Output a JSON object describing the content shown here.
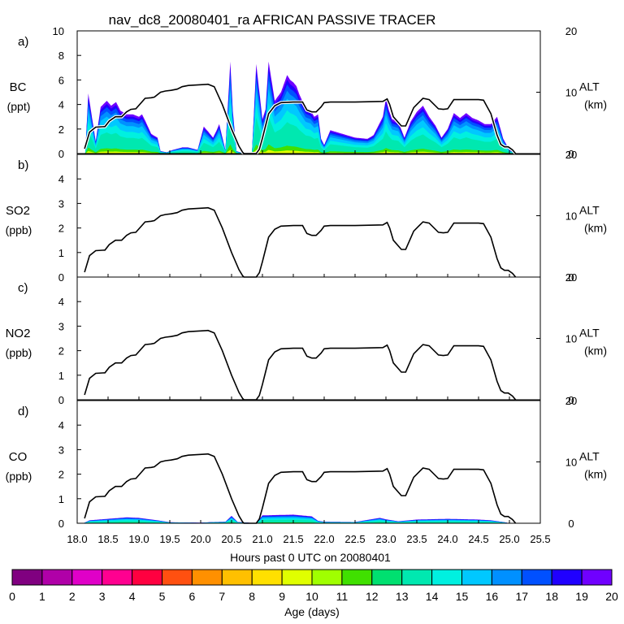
{
  "title": "nav_dc8_20080401_ra AFRICAN PASSIVE TRACER",
  "colors": {
    "axis": "#000000",
    "altitude_line": "#000000",
    "age_colorbar": [
      "#800080",
      "#b000a8",
      "#e000c8",
      "#ff0090",
      "#ff0040",
      "#ff5010",
      "#ff9000",
      "#ffc000",
      "#ffe000",
      "#e0ff00",
      "#a0ff00",
      "#40e000",
      "#00e070",
      "#00e8b0",
      "#00f0e0",
      "#00c8ff",
      "#0090ff",
      "#0050ff",
      "#2000ff",
      "#7000ff"
    ]
  },
  "chart_data": {
    "type": "area",
    "title": "nav_dc8_20080401_ra AFRICAN PASSIVE TRACER",
    "xlabel": "Hours past 0 UTC on 20080401",
    "x_ticks": [
      "18.0",
      "18.5",
      "19.0",
      "19.5",
      "20.0",
      "20.5",
      "21.0",
      "21.5",
      "22.0",
      "22.5",
      "23.0",
      "23.5",
      "24.0",
      "24.5",
      "25.0",
      "25.5"
    ],
    "xlim": [
      18.0,
      25.5
    ],
    "right_axis": {
      "label_top": "ALT",
      "label_bottom": "(km)",
      "ticks": [
        "0",
        "10",
        "20"
      ],
      "ylim": [
        0,
        20
      ]
    },
    "panels": [
      {
        "letter": "a)",
        "species": "BC",
        "unit": "(ppt)",
        "ylim": [
          0,
          10
        ],
        "y_ticks": [
          "0",
          "2",
          "4",
          "6",
          "8",
          "10"
        ],
        "total_peaks_x": [
          18.13,
          18.18,
          18.3,
          18.38,
          18.48,
          18.55,
          18.63,
          18.7,
          18.8,
          18.9,
          19.0,
          19.05,
          19.1,
          19.2,
          19.3,
          19.35,
          19.45,
          19.55,
          19.7,
          19.8,
          19.95,
          20.05,
          20.12,
          20.2,
          20.25,
          20.3,
          20.4,
          20.48,
          20.52,
          20.58,
          20.7,
          20.83,
          20.9,
          21.0,
          21.05,
          21.1,
          21.2,
          21.3,
          21.4,
          21.45,
          21.5,
          21.55,
          21.6,
          21.7,
          21.78,
          21.84,
          21.9,
          21.95,
          22.0,
          22.1,
          22.3,
          22.5,
          22.7,
          22.8,
          22.9,
          22.95,
          23.0,
          23.05,
          23.1,
          23.2,
          23.3,
          23.4,
          23.5,
          23.6,
          23.7,
          23.8,
          23.9,
          24.0,
          24.1,
          24.2,
          24.3,
          24.4,
          24.5,
          24.6,
          24.7,
          24.8,
          24.9,
          25.0,
          25.1
        ],
        "total_peaks_y": [
          0,
          4.9,
          1,
          3.8,
          4.3,
          3.9,
          4.2,
          3.5,
          3.2,
          3.2,
          3,
          3.2,
          2.7,
          1.6,
          1.3,
          0.2,
          0.1,
          0.3,
          0.5,
          0.5,
          0.3,
          2.2,
          1.8,
          1.3,
          1.8,
          2.4,
          0.3,
          7.5,
          3.5,
          0.2,
          0,
          0,
          7.3,
          2.8,
          3.6,
          7.5,
          4.3,
          5,
          6.4,
          6,
          5.8,
          5.5,
          4.8,
          3.7,
          3.5,
          3,
          3.2,
          1.2,
          0.7,
          1.9,
          1.6,
          1.3,
          1.2,
          1.5,
          2.5,
          3,
          4.5,
          3.5,
          2.8,
          2.6,
          1.3,
          2.6,
          3.4,
          3.9,
          3,
          2.3,
          1.3,
          2,
          3.3,
          2.9,
          3.3,
          2.9,
          2.7,
          2.4,
          2.4,
          3,
          1.2,
          0.3,
          0
        ]
      },
      {
        "letter": "b)",
        "species": "SO2",
        "unit": "(ppb)",
        "ylim": [
          0,
          5
        ],
        "y_ticks": [
          "0",
          "1",
          "2",
          "3",
          "4"
        ]
      },
      {
        "letter": "c)",
        "species": "NO2",
        "unit": "(ppb)",
        "ylim": [
          0,
          5
        ],
        "y_ticks": [
          "0",
          "1",
          "2",
          "3",
          "4"
        ]
      },
      {
        "letter": "d)",
        "species": "CO",
        "unit": "(ppb)",
        "ylim": [
          0,
          5
        ],
        "y_ticks": [
          "0",
          "1",
          "2",
          "3",
          "4"
        ],
        "total_peaks_x": [
          18.1,
          18.2,
          18.5,
          18.8,
          19.0,
          19.3,
          19.5,
          20.0,
          20.2,
          20.4,
          20.5,
          20.6,
          20.9,
          21.0,
          21.5,
          21.8,
          21.9,
          22.0,
          22.5,
          22.9,
          23.0,
          23.2,
          23.5,
          24.0,
          24.5,
          24.7,
          24.9,
          25.0
        ],
        "total_peaks_y": [
          0,
          0.12,
          0.18,
          0.24,
          0.22,
          0.12,
          0.04,
          0.02,
          0.05,
          0.06,
          0.3,
          0.05,
          0,
          0.32,
          0.35,
          0.28,
          0.1,
          0.06,
          0.05,
          0.22,
          0.16,
          0.08,
          0.15,
          0.18,
          0.15,
          0.12,
          0.05,
          0
        ]
      }
    ],
    "altitude_km": {
      "x": [
        18.12,
        18.2,
        18.3,
        18.45,
        18.52,
        18.62,
        18.72,
        18.8,
        18.87,
        18.95,
        19.1,
        19.2,
        19.25,
        19.35,
        19.43,
        19.52,
        19.62,
        19.7,
        19.8,
        20.12,
        20.22,
        20.35,
        20.5,
        20.62,
        20.68,
        20.7,
        20.9,
        20.95,
        21.0,
        21.05,
        21.1,
        21.2,
        21.3,
        21.5,
        21.65,
        21.72,
        21.8,
        21.87,
        21.95,
        22.0,
        22.1,
        22.5,
        22.95,
        23.02,
        23.06,
        23.12,
        23.25,
        23.32,
        23.45,
        23.55,
        23.6,
        23.7,
        23.85,
        23.93,
        24.0,
        24.1,
        24.5,
        24.58,
        24.7,
        24.8,
        24.86,
        24.92,
        24.98,
        25.05,
        25.1
      ],
      "y": [
        0.8,
        3.5,
        4.3,
        4.4,
        5.3,
        6,
        6,
        6.8,
        7.2,
        7.3,
        9,
        9.1,
        9.2,
        10,
        10.2,
        10.3,
        10.5,
        10.9,
        11.1,
        11.3,
        10.9,
        8,
        4,
        1.2,
        0.2,
        0,
        0,
        0.7,
        2.5,
        4.5,
        6.5,
        7.8,
        8.3,
        8.4,
        8.4,
        7.1,
        6.8,
        6.8,
        7.6,
        8.3,
        8.4,
        8.4,
        8.5,
        8.9,
        8,
        6,
        4.5,
        4.5,
        7.5,
        8.5,
        9,
        8.8,
        7.3,
        7.2,
        7.3,
        8.8,
        8.8,
        8.7,
        6.5,
        3,
        1.5,
        1.1,
        1.1,
        0.6,
        0
      ]
    },
    "colorbar": {
      "label": "Age (days)",
      "ticks": [
        "0",
        "1",
        "2",
        "3",
        "4",
        "5",
        "6",
        "7",
        "8",
        "9",
        "10",
        "11",
        "12",
        "13",
        "14",
        "15",
        "16",
        "17",
        "18",
        "19",
        "20"
      ]
    }
  }
}
